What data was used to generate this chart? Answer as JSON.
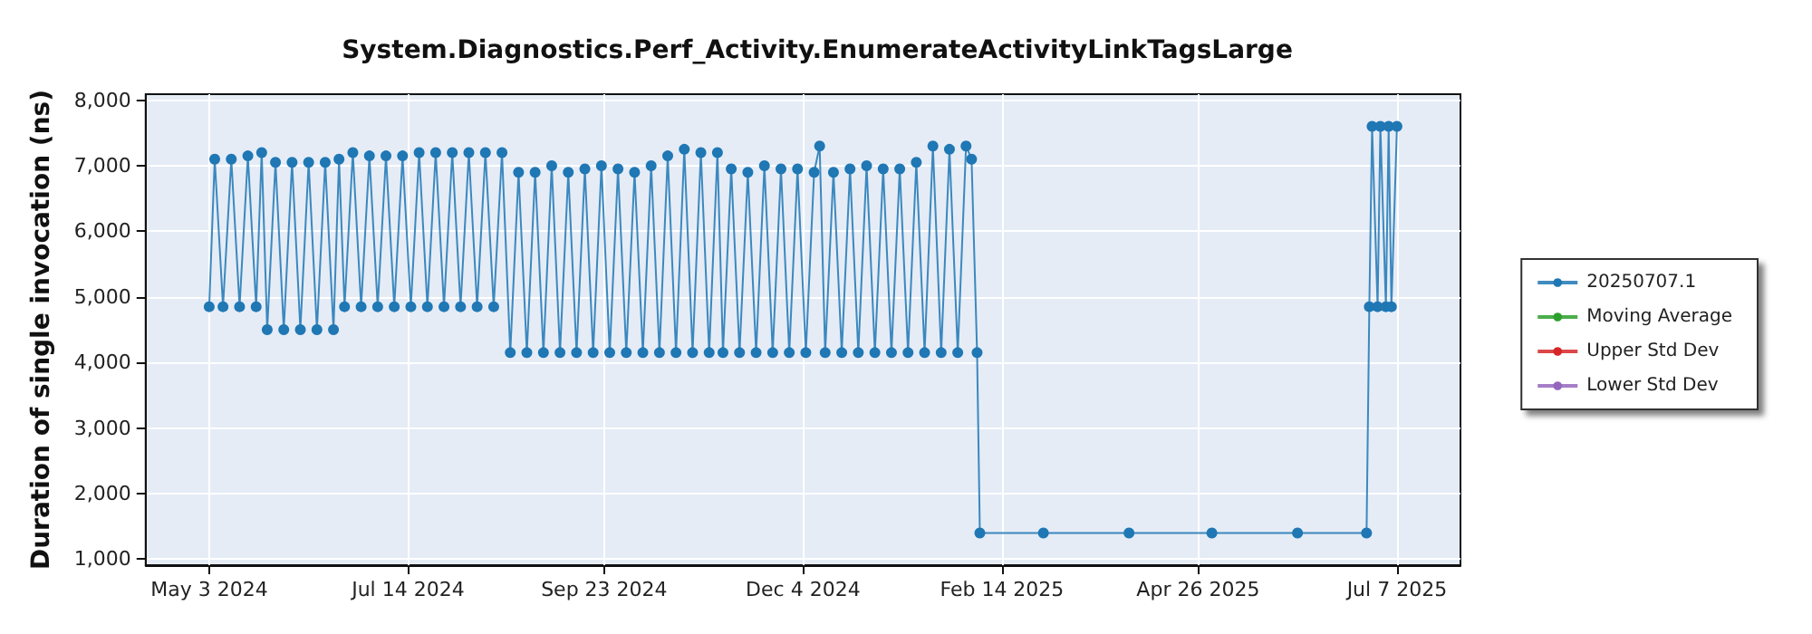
{
  "chart_data": {
    "type": "line",
    "title": "System.Diagnostics.Perf_Activity.EnumerateActivityLinkTagsLarge",
    "ylabel": "Duration of single invocation (ns)",
    "x": [
      "2024-05-03",
      "2024-05-05",
      "2024-05-08",
      "2024-05-11",
      "2024-05-14",
      "2024-05-17",
      "2024-05-20",
      "2024-05-22",
      "2024-05-24",
      "2024-05-27",
      "2024-05-30",
      "2024-06-02",
      "2024-06-05",
      "2024-06-08",
      "2024-06-11",
      "2024-06-14",
      "2024-06-17",
      "2024-06-19",
      "2024-06-21",
      "2024-06-24",
      "2024-06-27",
      "2024-06-30",
      "2024-07-03",
      "2024-07-06",
      "2024-07-09",
      "2024-07-12",
      "2024-07-15",
      "2024-07-18",
      "2024-07-21",
      "2024-07-24",
      "2024-07-27",
      "2024-07-30",
      "2024-08-02",
      "2024-08-05",
      "2024-08-08",
      "2024-08-11",
      "2024-08-14",
      "2024-08-17",
      "2024-08-20",
      "2024-08-23",
      "2024-08-26",
      "2024-08-29",
      "2024-09-01",
      "2024-09-04",
      "2024-09-07",
      "2024-09-10",
      "2024-09-13",
      "2024-09-16",
      "2024-09-19",
      "2024-09-22",
      "2024-09-25",
      "2024-09-28",
      "2024-10-01",
      "2024-10-04",
      "2024-10-07",
      "2024-10-10",
      "2024-10-13",
      "2024-10-16",
      "2024-10-19",
      "2024-10-22",
      "2024-10-25",
      "2024-10-28",
      "2024-10-31",
      "2024-11-03",
      "2024-11-05",
      "2024-11-08",
      "2024-11-11",
      "2024-11-14",
      "2024-11-17",
      "2024-11-20",
      "2024-11-23",
      "2024-11-26",
      "2024-11-29",
      "2024-12-02",
      "2024-12-05",
      "2024-12-08",
      "2024-12-10",
      "2024-12-12",
      "2024-12-15",
      "2024-12-18",
      "2024-12-21",
      "2024-12-24",
      "2024-12-27",
      "2024-12-30",
      "2025-01-02",
      "2025-01-05",
      "2025-01-08",
      "2025-01-11",
      "2025-01-14",
      "2025-01-17",
      "2025-01-20",
      "2025-01-23",
      "2025-01-26",
      "2025-01-29",
      "2025-02-01",
      "2025-02-03",
      "2025-02-05",
      "2025-02-06",
      "2025-03-01",
      "2025-04-01",
      "2025-05-01",
      "2025-06-01",
      "2025-06-26",
      "2025-06-27",
      "2025-06-28",
      "2025-06-30",
      "2025-07-01",
      "2025-07-03",
      "2025-07-04",
      "2025-07-05",
      "2025-07-07"
    ],
    "series": [
      {
        "name": "20250707.1",
        "color": "#1f77b4",
        "values": [
          4850,
          7100,
          4850,
          7100,
          4850,
          7150,
          4850,
          7200,
          4500,
          7050,
          4500,
          7050,
          4500,
          7050,
          4500,
          7050,
          4500,
          7100,
          4850,
          7200,
          4850,
          7150,
          4850,
          7150,
          4850,
          7150,
          4850,
          7200,
          4850,
          7200,
          4850,
          7200,
          4850,
          7200,
          4850,
          7200,
          4850,
          7200,
          4150,
          6900,
          4150,
          6900,
          4150,
          7000,
          4150,
          6900,
          4150,
          6950,
          4150,
          7000,
          4150,
          6950,
          4150,
          6900,
          4150,
          7000,
          4150,
          7150,
          4150,
          7250,
          4150,
          7200,
          4150,
          7200,
          4150,
          6950,
          4150,
          6900,
          4150,
          7000,
          4150,
          6950,
          4150,
          6950,
          4150,
          6900,
          7300,
          4150,
          6900,
          4150,
          6950,
          4150,
          7000,
          4150,
          6950,
          4150,
          6950,
          4150,
          7050,
          4150,
          7300,
          4150,
          7250,
          4150,
          7300,
          7100,
          4150,
          1400,
          1400,
          1400,
          1400,
          1400,
          1400,
          4850,
          7600,
          4850,
          7600,
          4850,
          7600,
          4850,
          7600
        ]
      },
      {
        "name": "Moving Average",
        "color": "#2ca02c",
        "values": [
          null,
          null,
          null,
          null,
          null,
          null,
          null,
          null,
          null,
          null,
          null,
          null,
          null,
          null,
          null,
          null,
          null,
          null,
          null,
          null,
          null,
          null,
          null,
          null,
          null,
          null,
          null,
          null,
          null,
          null,
          null,
          null,
          null,
          null,
          null,
          null,
          null,
          null,
          null,
          null,
          null,
          null,
          null,
          null,
          null,
          null,
          null,
          null,
          null,
          null,
          null,
          null,
          null,
          null,
          null,
          null,
          null,
          null,
          null,
          null,
          null,
          null,
          null,
          null,
          null,
          null,
          null,
          null,
          null,
          null,
          null,
          null,
          null,
          null,
          null,
          null,
          null,
          null,
          null,
          null,
          null,
          null,
          null,
          null,
          null,
          null,
          null,
          null,
          null,
          null,
          null,
          null,
          null,
          null,
          null,
          null,
          null,
          null,
          null,
          null,
          null,
          null,
          null,
          null,
          null,
          null,
          null,
          null,
          null,
          null,
          null
        ]
      },
      {
        "name": "Upper Std Dev",
        "color": "#d62728",
        "values": [
          null,
          null,
          null,
          null,
          null,
          null,
          null,
          null,
          null,
          null,
          null,
          null,
          null,
          null,
          null,
          null,
          null,
          null,
          null,
          null,
          null,
          null,
          null,
          null,
          null,
          null,
          null,
          null,
          null,
          null,
          null,
          null,
          null,
          null,
          null,
          null,
          null,
          null,
          null,
          null,
          null,
          null,
          null,
          null,
          null,
          null,
          null,
          null,
          null,
          null,
          null,
          null,
          null,
          null,
          null,
          null,
          null,
          null,
          null,
          null,
          null,
          null,
          null,
          null,
          null,
          null,
          null,
          null,
          null,
          null,
          null,
          null,
          null,
          null,
          null,
          null,
          null,
          null,
          null,
          null,
          null,
          null,
          null,
          null,
          null,
          null,
          null,
          null,
          null,
          null,
          null,
          null,
          null,
          null,
          null,
          null,
          null,
          null,
          null,
          null,
          null,
          null,
          null,
          null,
          null,
          null,
          null,
          null,
          null,
          null,
          null
        ]
      },
      {
        "name": "Lower Std Dev",
        "color": "#9467bd",
        "values": [
          null,
          null,
          null,
          null,
          null,
          null,
          null,
          null,
          null,
          null,
          null,
          null,
          null,
          null,
          null,
          null,
          null,
          null,
          null,
          null,
          null,
          null,
          null,
          null,
          null,
          null,
          null,
          null,
          null,
          null,
          null,
          null,
          null,
          null,
          null,
          null,
          null,
          null,
          null,
          null,
          null,
          null,
          null,
          null,
          null,
          null,
          null,
          null,
          null,
          null,
          null,
          null,
          null,
          null,
          null,
          null,
          null,
          null,
          null,
          null,
          null,
          null,
          null,
          null,
          null,
          null,
          null,
          null,
          null,
          null,
          null,
          null,
          null,
          null,
          null,
          null,
          null,
          null,
          null,
          null,
          null,
          null,
          null,
          null,
          null,
          null,
          null,
          null,
          null,
          null,
          null,
          null,
          null,
          null,
          null,
          null,
          null,
          null,
          null,
          null,
          null,
          null,
          null,
          null,
          null,
          null,
          null,
          null,
          null,
          null,
          null
        ]
      }
    ],
    "xlim": [
      "2024-04-10",
      "2025-07-30"
    ],
    "xticks": [
      {
        "value": "2024-05-03",
        "label": "May 3 2024"
      },
      {
        "value": "2024-07-14",
        "label": "Jul 14 2024"
      },
      {
        "value": "2024-09-23",
        "label": "Sep 23 2024"
      },
      {
        "value": "2024-12-04",
        "label": "Dec 4 2024"
      },
      {
        "value": "2025-02-14",
        "label": "Feb 14 2025"
      },
      {
        "value": "2025-04-26",
        "label": "Apr 26 2025"
      },
      {
        "value": "2025-07-07",
        "label": "Jul 7 2025"
      }
    ],
    "ylim": [
      910,
      8090
    ],
    "yticks": [
      {
        "value": 1000,
        "label": "1,000"
      },
      {
        "value": 2000,
        "label": "2,000"
      },
      {
        "value": 3000,
        "label": "3,000"
      },
      {
        "value": 4000,
        "label": "4,000"
      },
      {
        "value": 5000,
        "label": "5,000"
      },
      {
        "value": 6000,
        "label": "6,000"
      },
      {
        "value": 7000,
        "label": "7,000"
      },
      {
        "value": 8000,
        "label": "8,000"
      }
    ],
    "grid": true,
    "legend": "right",
    "marker": "circle",
    "line_style": "solid"
  }
}
